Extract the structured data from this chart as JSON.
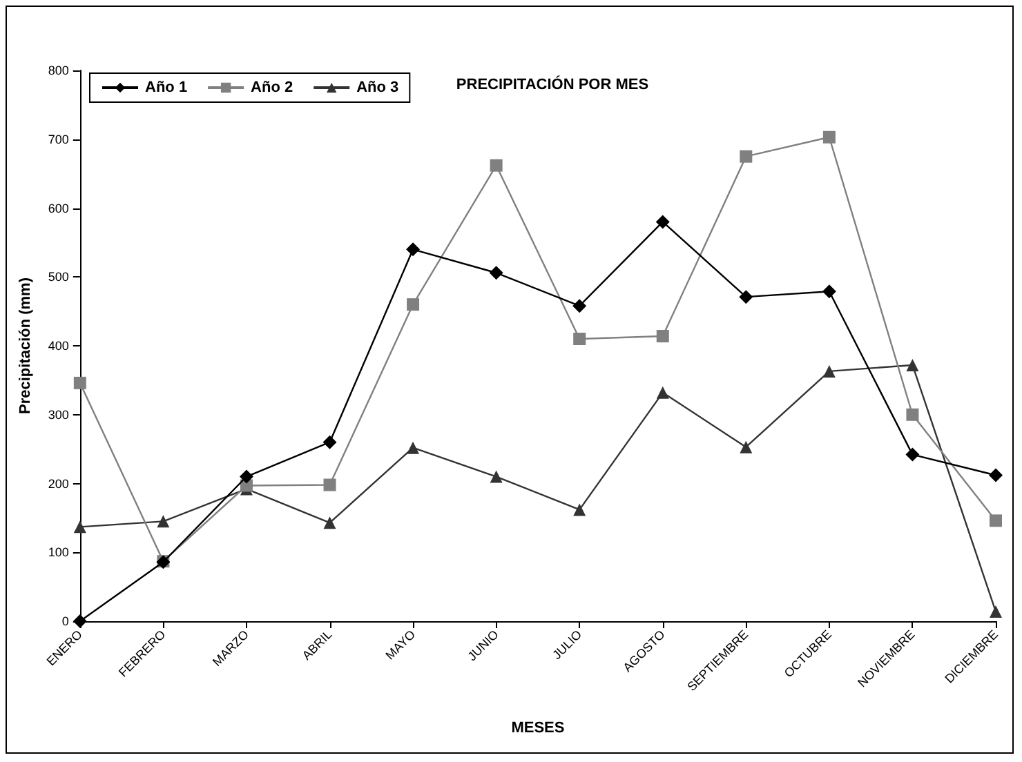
{
  "chart_data": {
    "type": "line",
    "title": "PRECIPITACIÓN POR MES",
    "xlabel": "MESES",
    "ylabel": "Precipitación (mm)",
    "categories": [
      "ENERO",
      "FEBRERO",
      "MARZO",
      "ABRIL",
      "MAYO",
      "JUNIO",
      "JULIO",
      "AGOSTO",
      "SEPTIEMBRE",
      "OCTUBRE",
      "NOVIEMBRE",
      "DICIEMBRE"
    ],
    "series": [
      {
        "name": "Año 1",
        "color": "#000000",
        "marker": "diamond",
        "values": [
          0,
          86,
          210,
          260,
          540,
          506,
          458,
          580,
          471,
          479,
          242,
          212
        ]
      },
      {
        "name": "Año 2",
        "color": "#808080",
        "marker": "square",
        "values": [
          346,
          87,
          197,
          198,
          460,
          662,
          410,
          414,
          675,
          703,
          300,
          146
        ]
      },
      {
        "name": "Año 3",
        "color": "#333333",
        "marker": "triangle",
        "values": [
          137,
          145,
          192,
          143,
          252,
          210,
          162,
          332,
          253,
          363,
          372,
          14
        ]
      }
    ],
    "ylim": [
      0,
      800
    ],
    "yticks": [
      0,
      100,
      200,
      300,
      400,
      500,
      600,
      700,
      800
    ],
    "grid": false,
    "legend": "top left",
    "line_style": "solid"
  }
}
